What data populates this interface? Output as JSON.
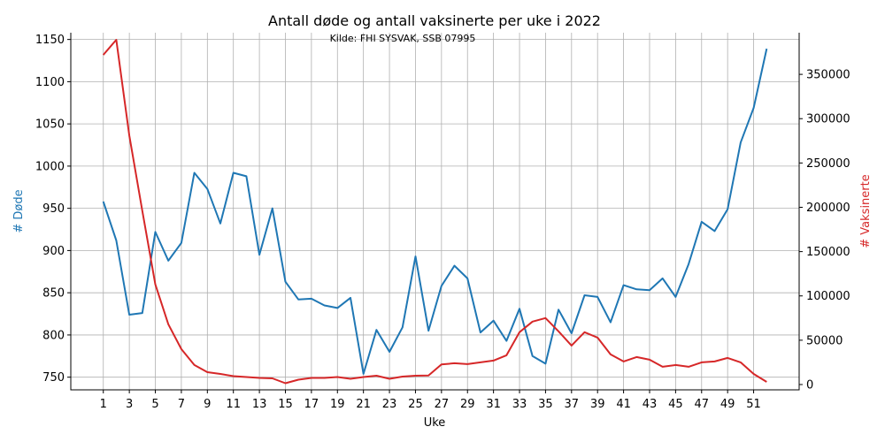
{
  "chart_data": {
    "type": "line",
    "title": "Antall døde og antall vaksinerte per uke i 2022",
    "subtitle": "Kilde: FHI SYSVAK, SSB 07995",
    "xlabel": "Uke",
    "ylabel_left": "# Døde",
    "ylabel_right": "# Vaksinerte",
    "x": [
      1,
      2,
      3,
      4,
      5,
      6,
      7,
      8,
      9,
      10,
      11,
      12,
      13,
      14,
      15,
      16,
      17,
      18,
      19,
      20,
      21,
      22,
      23,
      24,
      25,
      26,
      27,
      28,
      29,
      30,
      31,
      32,
      33,
      34,
      35,
      36,
      37,
      38,
      39,
      40,
      41,
      42,
      43,
      44,
      45,
      46,
      47,
      48,
      49,
      50,
      51,
      52
    ],
    "x_ticks": [
      1,
      3,
      5,
      7,
      9,
      11,
      13,
      15,
      17,
      19,
      21,
      23,
      25,
      27,
      29,
      31,
      33,
      35,
      37,
      39,
      41,
      43,
      45,
      47,
      49,
      51
    ],
    "xlim": [
      -1.5,
      54.5
    ],
    "ylim_left": [
      735,
      1158
    ],
    "y_ticks_left": [
      750,
      800,
      850,
      900,
      950,
      1000,
      1050,
      1100,
      1150
    ],
    "ylim_right": [
      -6000,
      397000
    ],
    "y_ticks_right": [
      0,
      50000,
      100000,
      150000,
      200000,
      250000,
      300000,
      350000
    ],
    "grid": true,
    "legend": null,
    "series": [
      {
        "name": "# Døde",
        "axis": "left",
        "color": "#1f77b4",
        "values": [
          958,
          912,
          824,
          826,
          922,
          888,
          909,
          992,
          973,
          932,
          992,
          988,
          895,
          950,
          863,
          842,
          843,
          835,
          832,
          844,
          754,
          806,
          780,
          809,
          893,
          805,
          858,
          882,
          867,
          803,
          817,
          793,
          831,
          775,
          766,
          830,
          802,
          847,
          845,
          815,
          859,
          854,
          853,
          867,
          845,
          884,
          934,
          923,
          949,
          1028,
          1069,
          1139
        ]
      },
      {
        "name": "# Vaksinerte",
        "axis": "right",
        "color": "#d62728",
        "values": [
          372000,
          389000,
          281000,
          196000,
          113000,
          68000,
          40000,
          22000,
          14000,
          12000,
          9500,
          8500,
          7500,
          7000,
          1500,
          5500,
          7500,
          7500,
          8500,
          6500,
          8500,
          10000,
          6500,
          9000,
          10000,
          10300,
          22600,
          24000,
          23000,
          25000,
          27000,
          33000,
          59000,
          71000,
          75000,
          60000,
          44000,
          59000,
          53000,
          34000,
          26000,
          31000,
          28000,
          20000,
          22000,
          20000,
          25000,
          26000,
          30000,
          25000,
          12000,
          3000
        ]
      }
    ]
  }
}
